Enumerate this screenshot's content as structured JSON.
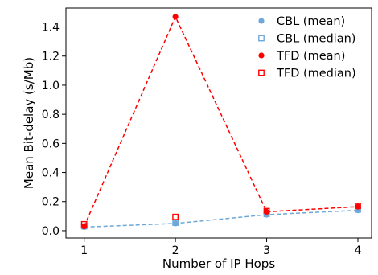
{
  "chart_data": {
    "type": "line",
    "xlabel": "Number of IP Hops",
    "ylabel": "Mean Bit-delay (s/Mb)",
    "x": [
      1,
      2,
      3,
      4
    ],
    "xlim": [
      0.8,
      4.15
    ],
    "ylim": [
      -0.05,
      1.53
    ],
    "xticks": [
      "1",
      "2",
      "3",
      "4"
    ],
    "yticks": [
      "0.0",
      "0.2",
      "0.4",
      "0.6",
      "0.8",
      "1.0",
      "1.2",
      "1.4"
    ],
    "series": [
      {
        "name": "CBL (mean)",
        "marker": "filled-circle",
        "color": "#6fa8d6",
        "values": [
          0.025,
          0.05,
          0.11,
          0.14
        ]
      },
      {
        "name": "CBL (median)",
        "marker": "open-square",
        "color": "#6fa8d6",
        "values": [
          0.03,
          0.055,
          0.115,
          0.145
        ]
      },
      {
        "name": "TFD (mean)",
        "marker": "filled-circle",
        "color": "#ff0000",
        "values": [
          0.03,
          1.47,
          0.13,
          0.165
        ]
      },
      {
        "name": "TFD (median)",
        "marker": "open-square",
        "color": "#ff0000",
        "values": [
          0.045,
          0.095,
          0.135,
          0.17
        ]
      }
    ],
    "lines": [
      {
        "from_series": "CBL (mean)",
        "style": "dashed",
        "color": "#6fa8d6"
      },
      {
        "from_series": "TFD (mean)",
        "style": "dashed",
        "color": "#ff0000"
      }
    ],
    "legend": "top-right",
    "grid": false
  }
}
